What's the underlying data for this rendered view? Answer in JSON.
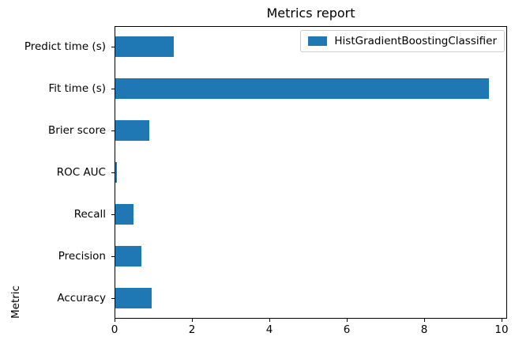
{
  "chart_data": {
    "type": "bar",
    "orientation": "horizontal",
    "title": "Metrics report",
    "ylabel": "Metric",
    "categories_top_to_bottom": [
      "Predict time (s)",
      "Fit time (s)",
      "Brier score",
      "ROC AUC",
      "Recall",
      "Precision",
      "Accuracy"
    ],
    "series": [
      {
        "name": "HistGradientBoostingClassifier",
        "color": "#1f77b4",
        "values_top_to_bottom": [
          1.54,
          9.69,
          0.89,
          0.06,
          0.48,
          0.69,
          0.97
        ]
      }
    ],
    "xticks": [
      0,
      2,
      4,
      6,
      8,
      10
    ],
    "xlim": [
      0,
      10.15
    ],
    "grid": false,
    "legend": {
      "position": "upper right",
      "entries": [
        "HistGradientBoostingClassifier"
      ],
      "border_color": "#cccccc",
      "background": "#ffffff"
    }
  }
}
